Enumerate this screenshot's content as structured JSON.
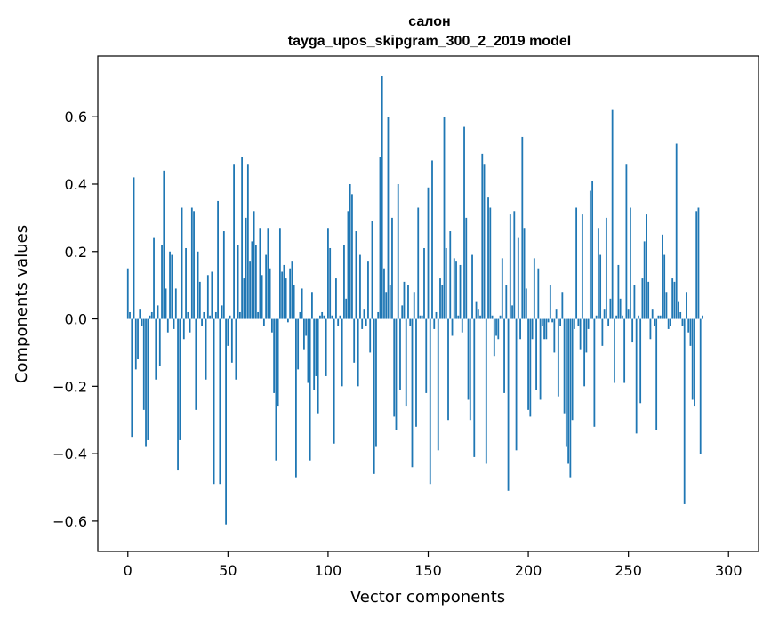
{
  "chart_data": {
    "type": "bar",
    "title_line1": "салон",
    "title_line2": "tayga_upos_skipgram_300_2_2019 model",
    "xlabel": "Vector components",
    "ylabel": "Components values",
    "xlim": [
      -15,
      315
    ],
    "ylim": [
      -0.69,
      0.78
    ],
    "xticks": [
      0,
      50,
      100,
      150,
      200,
      250,
      300
    ],
    "yticks": [
      -0.6,
      -0.4,
      -0.2,
      0.0,
      0.2,
      0.4,
      0.6
    ],
    "ytick_labels": [
      "−0.6",
      "−0.4",
      "−0.2",
      "0.0",
      "0.2",
      "0.4",
      "0.6"
    ],
    "bar_color": "#1f77b4",
    "values": [
      0.15,
      0.02,
      -0.35,
      0.42,
      -0.15,
      -0.12,
      0.03,
      -0.02,
      -0.27,
      -0.38,
      -0.36,
      0.01,
      0.02,
      0.24,
      -0.18,
      0.04,
      -0.14,
      0.22,
      0.44,
      0.09,
      -0.04,
      0.2,
      0.19,
      -0.03,
      0.09,
      -0.45,
      -0.36,
      0.33,
      -0.06,
      0.21,
      0.02,
      -0.04,
      0.33,
      0.32,
      -0.27,
      0.2,
      0.11,
      -0.02,
      0.02,
      -0.18,
      0.13,
      0.01,
      0.14,
      -0.49,
      0.02,
      0.35,
      -0.49,
      0.04,
      0.26,
      -0.61,
      -0.08,
      0.01,
      -0.13,
      0.46,
      -0.18,
      0.22,
      0.02,
      0.48,
      0.12,
      0.3,
      0.46,
      0.17,
      0.23,
      0.32,
      0.22,
      0.02,
      0.27,
      0.13,
      -0.02,
      0.19,
      0.27,
      0.15,
      -0.04,
      -0.22,
      -0.42,
      -0.26,
      0.27,
      0.14,
      0.16,
      0.12,
      -0.01,
      0.15,
      0.17,
      0.1,
      -0.47,
      -0.15,
      0.02,
      0.09,
      -0.09,
      -0.05,
      -0.19,
      -0.42,
      0.08,
      -0.21,
      -0.17,
      -0.28,
      0.01,
      0.02,
      0.01,
      -0.17,
      0.27,
      0.21,
      0.01,
      -0.37,
      0.12,
      -0.02,
      0.01,
      -0.2,
      0.22,
      0.06,
      0.32,
      0.4,
      0.37,
      -0.13,
      0.26,
      -0.2,
      0.19,
      -0.03,
      0.03,
      -0.02,
      0.17,
      -0.1,
      0.29,
      -0.46,
      -0.38,
      0.02,
      0.48,
      0.72,
      0.15,
      0.08,
      0.6,
      0.1,
      0.3,
      -0.29,
      -0.33,
      0.4,
      -0.21,
      0.04,
      0.11,
      -0.26,
      0.1,
      -0.02,
      -0.44,
      0.08,
      -0.32,
      0.33,
      0.01,
      0.01,
      0.21,
      -0.22,
      0.39,
      -0.49,
      0.47,
      -0.03,
      0.02,
      -0.39,
      0.12,
      0.1,
      0.6,
      0.21,
      -0.3,
      0.26,
      -0.05,
      0.18,
      0.17,
      0.01,
      0.16,
      -0.04,
      0.57,
      0.3,
      -0.24,
      -0.3,
      0.19,
      -0.41,
      0.05,
      0.03,
      0.01,
      0.49,
      0.46,
      -0.43,
      0.36,
      0.33,
      0.01,
      -0.11,
      -0.05,
      -0.06,
      0.01,
      0.18,
      -0.22,
      0.1,
      -0.51,
      0.31,
      0.04,
      0.32,
      -0.39,
      0.24,
      -0.06,
      0.54,
      0.27,
      0.09,
      -0.27,
      -0.29,
      -0.06,
      0.18,
      -0.21,
      0.15,
      -0.24,
      -0.02,
      -0.06,
      -0.06,
      -0.01,
      0.1,
      -0.01,
      -0.1,
      0.03,
      -0.23,
      -0.02,
      0.08,
      -0.28,
      -0.38,
      -0.43,
      -0.47,
      -0.3,
      -0.03,
      0.33,
      -0.02,
      -0.09,
      0.31,
      -0.2,
      -0.1,
      -0.03,
      0.38,
      0.41,
      -0.32,
      0.01,
      0.27,
      0.19,
      -0.08,
      0.03,
      0.3,
      -0.02,
      0.06,
      0.62,
      -0.19,
      0.01,
      0.16,
      0.06,
      0.01,
      -0.19,
      0.46,
      0.03,
      0.33,
      -0.07,
      0.1,
      -0.34,
      0.01,
      -0.25,
      0.12,
      0.23,
      0.31,
      0.11,
      -0.06,
      0.03,
      -0.02,
      -0.33,
      0.01,
      0.01,
      0.25,
      0.19,
      0.08,
      -0.03,
      -0.02,
      0.12,
      0.11,
      0.52,
      0.05,
      0.02,
      -0.02,
      -0.55,
      0.08,
      -0.04,
      -0.08,
      -0.24,
      -0.26,
      0.32,
      0.33,
      -0.4,
      0.01
    ]
  }
}
